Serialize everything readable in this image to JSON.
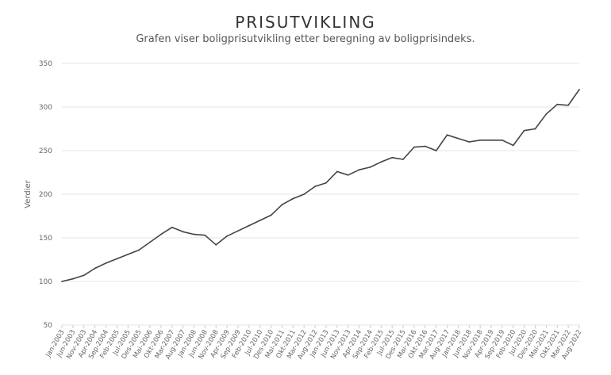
{
  "chart_data": {
    "type": "line",
    "title": "PRISUTVIKLING",
    "subtitle": "Grafen viser boligprisutvikling etter beregning av boligprisindeks.",
    "xlabel": "",
    "ylabel": "Verdier",
    "ylim": [
      50,
      350
    ],
    "yticks": [
      50,
      100,
      150,
      200,
      250,
      300,
      350
    ],
    "grid": true,
    "legend": "none",
    "colors": {
      "line": "#444444",
      "grid": "#e6e6e6",
      "axis_text": "#666666"
    },
    "x_tick_labels": [
      "Jan-2003",
      "Jun-2003",
      "Nov-2003",
      "Apr-2004",
      "Sep-2004",
      "Feb-2005",
      "Jul-2005",
      "Des-2005",
      "Mai-2006",
      "Okt-2006",
      "Mar-2007",
      "Aug-2007",
      "Jan-2008",
      "Jun-2008",
      "Nov-2008",
      "Apr-2009",
      "Sep-2009",
      "Feb-2010",
      "Jul-2010",
      "Des-2010",
      "Mai-2011",
      "Okt-2011",
      "Mar-2012",
      "Aug-2012",
      "Jan-2013",
      "Jun-2013",
      "Nov-2013",
      "Apr-2014",
      "Sep-2014",
      "Feb-2015",
      "Jul-2015",
      "Des-2015",
      "Mai-2016",
      "Okt-2016",
      "Mar-2017",
      "Aug-2017",
      "Jan-2018",
      "Jun-2018",
      "Nov-2018",
      "Apr-2019",
      "Sep-2019",
      "Feb-2020",
      "Jul-2020",
      "Des-2020",
      "Mai-2021",
      "Okt-2021",
      "Mar-2022",
      "Aug-2022"
    ],
    "series": [
      {
        "x": [
          "Jan-2003",
          "Jun-2003",
          "Nov-2003",
          "Apr-2004",
          "Sep-2004",
          "Feb-2005",
          "Jul-2005",
          "Des-2005",
          "Mai-2006",
          "Okt-2006",
          "Mar-2007",
          "Aug-2007",
          "Jan-2008",
          "Jun-2008",
          "Nov-2008",
          "Apr-2009",
          "Sep-2009",
          "Feb-2010",
          "Jul-2010",
          "Des-2010",
          "Mai-2011",
          "Okt-2011",
          "Mar-2012",
          "Aug-2012",
          "Jan-2013",
          "Jun-2013",
          "Nov-2013",
          "Apr-2014",
          "Sep-2014",
          "Feb-2015",
          "Jul-2015",
          "Des-2015",
          "Mai-2016",
          "Okt-2016",
          "Mar-2017",
          "Aug-2017",
          "Jan-2018",
          "Jun-2018",
          "Nov-2018",
          "Apr-2019",
          "Sep-2019",
          "Feb-2020",
          "Jul-2020",
          "Des-2020",
          "Mai-2021",
          "Okt-2021",
          "Mar-2022",
          "Aug-2022"
        ],
        "values": [
          100,
          103,
          107,
          115,
          121,
          126,
          131,
          136,
          145,
          154,
          162,
          157,
          154,
          153,
          142,
          152,
          158,
          164,
          170,
          176,
          188,
          195,
          200,
          209,
          213,
          226,
          222,
          228,
          231,
          237,
          242,
          240,
          254,
          255,
          250,
          268,
          264,
          260,
          262,
          262,
          262,
          256,
          273,
          275,
          292,
          303,
          302,
          320
        ]
      }
    ]
  }
}
